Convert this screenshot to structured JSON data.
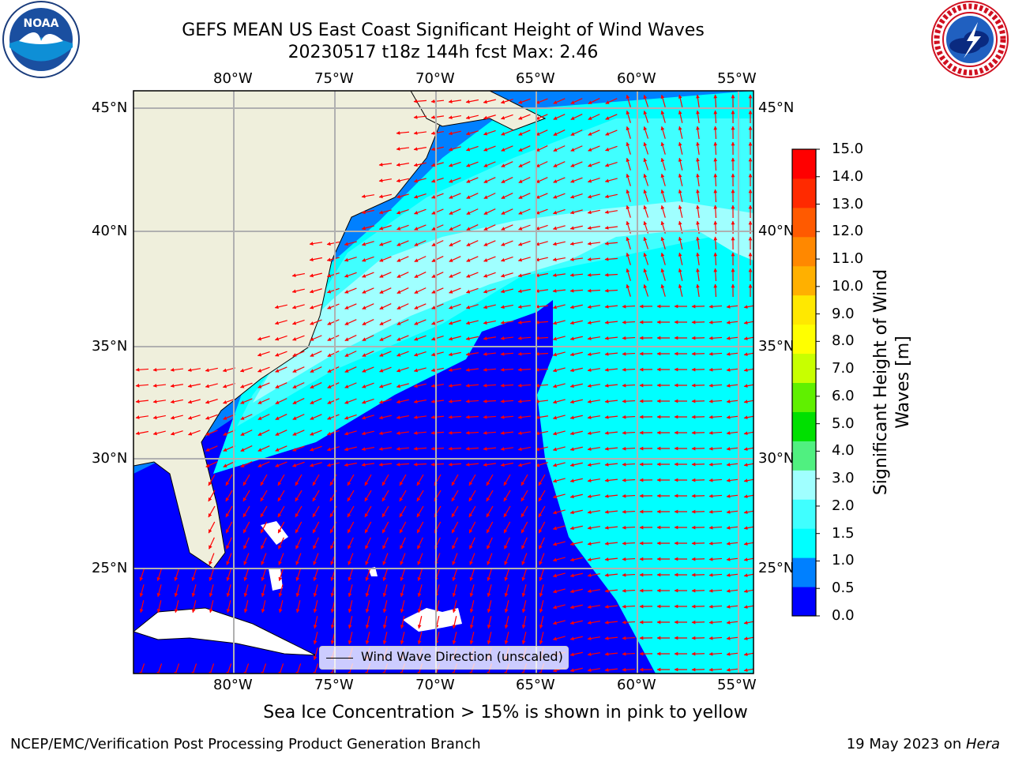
{
  "title": {
    "line1": "GEFS MEAN US East Coast Significant Height of Wind Waves",
    "line2": "20230517 t18z 144h fcst   Max: 2.46"
  },
  "logos": {
    "left": "noaa-logo",
    "left_text": "NOAA",
    "right": "nws-logo"
  },
  "map": {
    "lon_ticks": [
      "80°W",
      "75°W",
      "70°W",
      "65°W",
      "60°W",
      "55°W"
    ],
    "lat_ticks": [
      "45°N",
      "40°N",
      "35°N",
      "30°N",
      "25°N"
    ],
    "lon_range": [
      -85,
      -54.5
    ],
    "lat_range": [
      20,
      46
    ],
    "land_color": "#efefdc",
    "arrow_color": "#ff0000",
    "grid": true
  },
  "legend": {
    "label": "Wind Wave Direction (unscaled)"
  },
  "colorbar": {
    "label": "Significant Height of Wind Waves [m]",
    "label_line1": "Significant Height of Wind",
    "label_line2": "Waves [m]",
    "ticks": [
      "15.0",
      "14.0",
      "13.0",
      "12.0",
      "11.0",
      "10.0",
      "9.0",
      "8.0",
      "7.0",
      "6.0",
      "5.0",
      "4.0",
      "3.0",
      "2.0",
      "1.5",
      "1.0",
      "0.5",
      "0.0"
    ],
    "colors": [
      "#0000ff",
      "#0080ff",
      "#00ffff",
      "#40ffff",
      "#a0ffff",
      "#50f080",
      "#00e000",
      "#60f000",
      "#c8ff00",
      "#ffff00",
      "#ffe800",
      "#ffb000",
      "#ff8800",
      "#ff5a00",
      "#ff2a00",
      "#ff0000"
    ]
  },
  "caption": "Sea Ice Concentration > 15% is shown in pink to yellow",
  "footer": {
    "left": "NCEP/EMC/Verification Post Processing Product Generation Branch",
    "date": "19 May 2023 on ",
    "host": "Hera"
  }
}
